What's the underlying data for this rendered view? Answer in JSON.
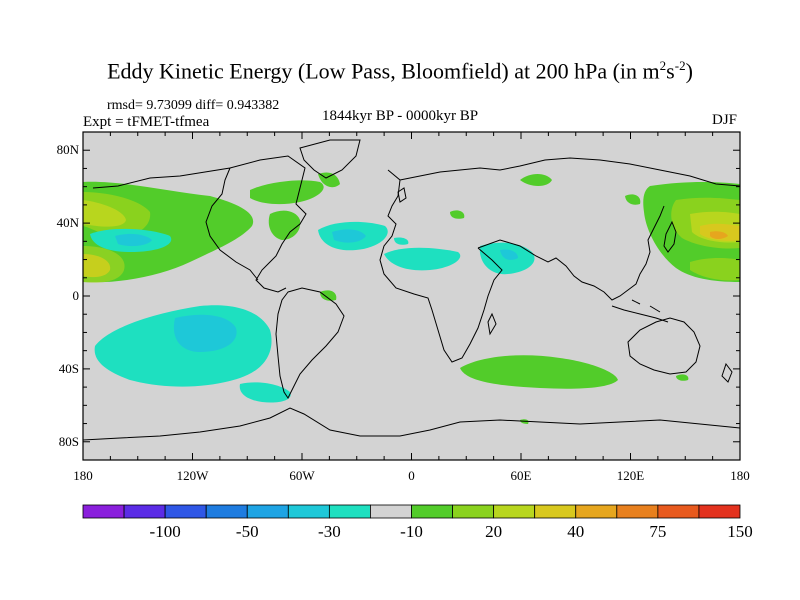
{
  "title": {
    "main": "Eddy Kinetic Energy (Low Pass, Bloomfield) at 200 hPa (in m",
    "sup1": "2",
    "mid": "s",
    "sup2": "-2",
    "end": ")"
  },
  "stats": {
    "rmsd": "rmsd= 9.73099 diff= 0.943382"
  },
  "experiment": "Expt = tFMET-tfmea",
  "period": "1844kyr BP - 0000kyr BP",
  "season": "DJF",
  "axes": {
    "lat_labels": [
      "80N",
      "40N",
      "0",
      "40S",
      "80S"
    ],
    "lat_values": [
      80,
      40,
      0,
      -40,
      -80
    ],
    "lon_labels": [
      "180",
      "120W",
      "60W",
      "0",
      "60E",
      "120E",
      "180"
    ],
    "lon_values": [
      -180,
      -120,
      -60,
      0,
      60,
      120,
      180
    ]
  },
  "colorbar": {
    "colors": [
      "#8a1fdc",
      "#5b2ce6",
      "#2f57e6",
      "#1e7ce0",
      "#1ea4e4",
      "#1ec8d8",
      "#1ee0c0",
      "#d3d3d3",
      "#52cc2a",
      "#8ad21e",
      "#b8d61e",
      "#d8c81e",
      "#e6a61e",
      "#e8801e",
      "#e85a1e",
      "#e3321e"
    ],
    "labels": [
      "-100",
      "-50",
      "-30",
      "-10",
      "20",
      "40",
      "75",
      "150"
    ]
  },
  "colors": {
    "land_neutral": "#d3d3d3",
    "light_green": "#8ad21e",
    "green": "#52cc2a",
    "yellow_green": "#b8d61e",
    "yellow": "#d8c81e",
    "orange": "#e6a61e",
    "cyan": "#1ee0c0",
    "teal": "#1ec8d8",
    "blue": "#1ea4e4"
  }
}
